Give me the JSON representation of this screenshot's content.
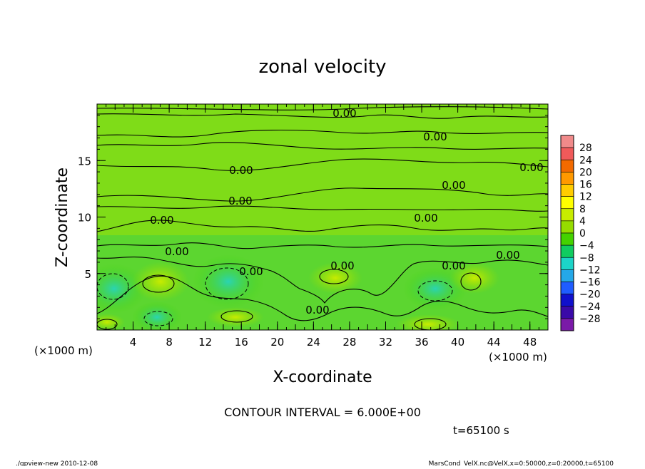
{
  "chart_data": {
    "type": "heatmap",
    "title": "zonal velocity",
    "xlabel": "X-coordinate",
    "ylabel": "Z-coordinate",
    "x_unit": "(×1000 m)",
    "y_unit": "(×1000 m)",
    "x_ticks": [
      4,
      8,
      12,
      16,
      20,
      24,
      28,
      32,
      36,
      40,
      44,
      48
    ],
    "y_ticks": [
      5,
      10,
      15
    ],
    "xlim": [
      0,
      50
    ],
    "ylim": [
      0,
      20
    ],
    "contour_interval_text": "CONTOUR INTERVAL = 6.000E+00",
    "time_text": "t=65100 s",
    "contour_labels": [
      "0.00",
      "0.00",
      "0.00",
      "0.00",
      "0.00",
      "0.00",
      "0.00",
      "0.00",
      "0.00",
      "0.00",
      "0.00",
      "0.00",
      "0.00",
      "0.00"
    ],
    "colorbar": {
      "levels": [
        "28",
        "24",
        "20",
        "16",
        "12",
        "8",
        "4",
        "0",
        "−4",
        "−8",
        "−12",
        "−16",
        "−20",
        "−24",
        "−28"
      ],
      "colors": [
        "#f08a8a",
        "#f05a5a",
        "#f26a00",
        "#ff9900",
        "#ffcc00",
        "#ffff00",
        "#c8ec00",
        "#96dc00",
        "#44d200",
        "#10cc60",
        "#1cd4c8",
        "#24a8e8",
        "#1f5cff",
        "#1010cc",
        "#3a0aa8",
        "#7a1aa8"
      ]
    }
  },
  "footer": {
    "left": "./gpview-new  2010-12-08",
    "right": "MarsCond_VelX.nc@VelX,x=0:50000,z=0:20000,t=65100"
  }
}
